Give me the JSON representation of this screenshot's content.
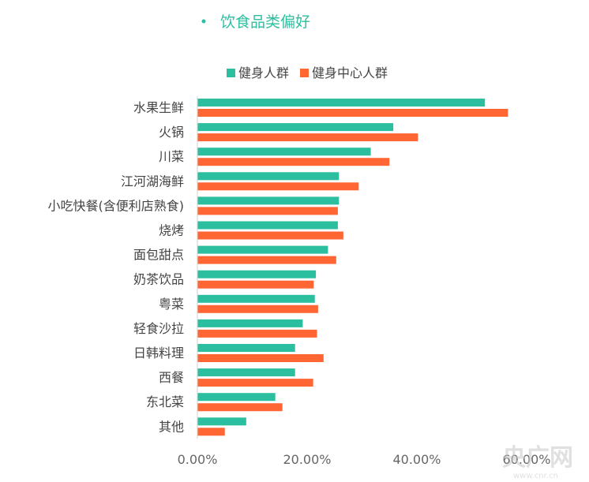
{
  "chart_data": {
    "type": "bar",
    "orientation": "horizontal",
    "title": "饮食品类偏好",
    "categories": [
      "水果生鲜",
      "火锅",
      "川菜",
      "江河湖海鲜",
      "小吃快餐(含便利店熟食)",
      "烧烤",
      "面包甜点",
      "奶茶饮品",
      "粤菜",
      "轻食沙拉",
      "日韩料理",
      "西餐",
      "东北菜",
      "其他"
    ],
    "series": [
      {
        "name": "健身人群",
        "color": "#2bbf9f",
        "values": [
          0.524,
          0.357,
          0.316,
          0.258,
          0.258,
          0.256,
          0.238,
          0.216,
          0.214,
          0.192,
          0.178,
          0.178,
          0.142,
          0.089
        ]
      },
      {
        "name": "健身中心人群",
        "color": "#ff6633",
        "values": [
          0.566,
          0.402,
          0.35,
          0.294,
          0.256,
          0.266,
          0.253,
          0.212,
          0.22,
          0.218,
          0.23,
          0.211,
          0.155,
          0.05
        ]
      }
    ],
    "xlim": [
      0,
      0.6
    ],
    "xticks": [
      "0.00%",
      "20.00%",
      "40.00%",
      "60.00%"
    ],
    "legend_position": "top-center",
    "grid": false
  },
  "watermark": {
    "main": "央广网",
    "sub": "www.cnr.cn"
  }
}
